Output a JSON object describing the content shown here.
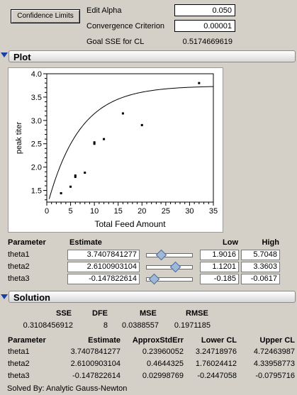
{
  "controls": {
    "confidence_button": "Confidence Limits",
    "edit_alpha_label": "Edit Alpha",
    "edit_alpha_value": "0.050",
    "convergence_label": "Convergence Criterion",
    "convergence_value": "0.00001",
    "goal_sse_label": "Goal SSE for CL",
    "goal_sse_value": "0.5174669619"
  },
  "plot_section": {
    "title": "Plot"
  },
  "chart_data": {
    "type": "scatter",
    "xlabel": "Total Feed Amount",
    "ylabel": "peak titer",
    "xlim": [
      0,
      35
    ],
    "ylim": [
      1.25,
      4.0
    ],
    "xticks": [
      0,
      5,
      10,
      15,
      20,
      25,
      30,
      35
    ],
    "yticks": [
      1.5,
      2.0,
      2.5,
      3.0,
      3.5,
      4.0
    ],
    "xtick_labels": [
      "0",
      "5",
      "10",
      "15",
      "20",
      "25",
      "30",
      "35"
    ],
    "ytick_labels": [
      "1.5",
      "2.0",
      "2.5",
      "3.0",
      "3.5",
      "4.0"
    ],
    "points": [
      {
        "x": 3,
        "y": 1.44
      },
      {
        "x": 5,
        "y": 1.58
      },
      {
        "x": 6,
        "y": 1.79
      },
      {
        "x": 6,
        "y": 1.82
      },
      {
        "x": 8,
        "y": 1.88
      },
      {
        "x": 10,
        "y": 2.5
      },
      {
        "x": 10,
        "y": 2.53
      },
      {
        "x": 12,
        "y": 2.6
      },
      {
        "x": 16,
        "y": 3.15
      },
      {
        "x": 20,
        "y": 2.9
      },
      {
        "x": 32,
        "y": 3.8
      }
    ],
    "fit_curve": {
      "theta1": 3.7407841277,
      "theta2": 2.6100903104,
      "theta3": -0.147822614,
      "x_range": [
        0,
        35
      ]
    }
  },
  "parameters": {
    "headers": {
      "parameter": "Parameter",
      "estimate": "Estimate",
      "low": "Low",
      "high": "High"
    },
    "rows": [
      {
        "name": "theta1",
        "estimate": "3.7407841277",
        "low": "1.9016",
        "high": "5.7048",
        "slider_fraction": 0.32
      },
      {
        "name": "theta2",
        "estimate": "2.6100903104",
        "low": "1.1201",
        "high": "3.3603",
        "slider_fraction": 0.62
      },
      {
        "name": "theta3",
        "estimate": "-0.147822614",
        "low": "-0.185",
        "high": "-0.0617",
        "slider_fraction": 0.17
      }
    ]
  },
  "solution": {
    "title": "Solution",
    "summary_headers": {
      "sse": "SSE",
      "dfe": "DFE",
      "mse": "MSE",
      "rmse": "RMSE"
    },
    "summary_values": {
      "sse": "0.3108456912",
      "dfe": "8",
      "mse": "0.0388557",
      "rmse": "0.1971185"
    },
    "table_headers": {
      "parameter": "Parameter",
      "estimate": "Estimate",
      "stderr": "ApproxStdErr",
      "lower": "Lower CL",
      "upper": "Upper CL"
    },
    "rows": [
      {
        "name": "theta1",
        "estimate": "3.7407841277",
        "stderr": "0.23960052",
        "lower": "3.24718976",
        "upper": "4.72463987"
      },
      {
        "name": "theta2",
        "estimate": "2.6100903104",
        "stderr": "0.4644325",
        "lower": "1.76024412",
        "upper": "4.33958773"
      },
      {
        "name": "theta3",
        "estimate": "-0.147822614",
        "stderr": "0.02998769",
        "lower": "-0.2447058",
        "upper": "-0.0795716"
      }
    ],
    "solved_by": "Solved By: Analytic Gauss-Newton"
  }
}
